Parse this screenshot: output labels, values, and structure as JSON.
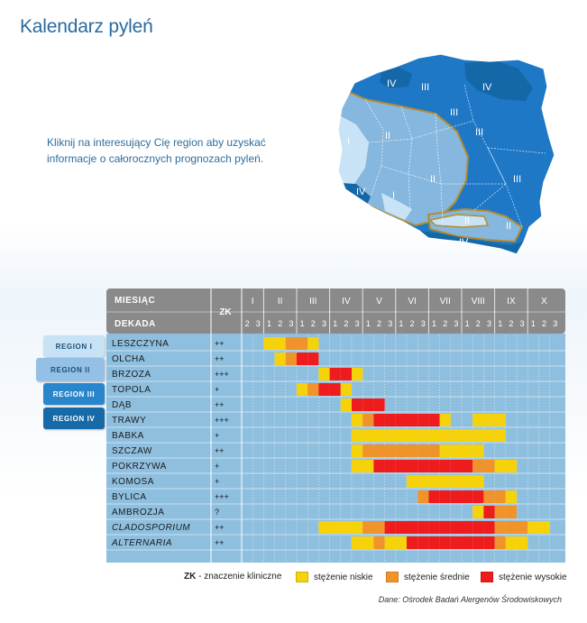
{
  "title": "Kalendarz pyleń",
  "intro": [
    "Kliknij na interesujący Cię region aby uzyskać",
    "informacje o całorocznych prognozach pyleń."
  ],
  "map_labels": [
    "I",
    "I",
    "II",
    "II",
    "II",
    "II",
    "III",
    "III",
    "III",
    "III",
    "IV",
    "IV",
    "IV",
    "IV"
  ],
  "region_buttons": [
    {
      "label": "REGION I",
      "bg": "#c6e2f4",
      "fg": "#1b4f7a"
    },
    {
      "label": "REGION II",
      "bg": "#93c0e4",
      "fg": "#1b4f7a"
    },
    {
      "label": "REGION III",
      "bg": "#2a86cc",
      "fg": "#ffffff"
    },
    {
      "label": "REGION IV",
      "bg": "#176aa8",
      "fg": "#ffffff"
    }
  ],
  "header": {
    "month_label": "MIESIĄC",
    "decade_label": "DEKADA",
    "zk_label": "ZK"
  },
  "colors": {
    "low": "#f5d20a",
    "medium": "#f0932b",
    "high": "#ee1c1c",
    "table_bg": "#8fbfdf",
    "header_bg": "#8a8a8a"
  },
  "chart_data": {
    "type": "table",
    "months": [
      "I",
      "II",
      "III",
      "IV",
      "V",
      "VI",
      "VII",
      "VIII",
      "IX",
      "X"
    ],
    "decades": [
      [
        "2",
        "3"
      ],
      [
        "1",
        "2",
        "3"
      ],
      [
        "1",
        "2",
        "3"
      ],
      [
        "1",
        "2",
        "3"
      ],
      [
        "1",
        "2",
        "3"
      ],
      [
        "1",
        "2",
        "3"
      ],
      [
        "1",
        "2",
        "3"
      ],
      [
        "1",
        "2",
        "3"
      ],
      [
        "1",
        "2",
        "3"
      ],
      [
        "1",
        "2",
        "3"
      ]
    ],
    "level_codes": {
      "0": "brak",
      "1": "stężenie niskie",
      "2": "stężenie średnie",
      "3": "stężenie wysokie"
    },
    "rows": [
      {
        "name": "LESZCZYNA",
        "zk": "++",
        "italic": false,
        "levels": [
          0,
          0,
          1,
          1,
          2,
          2,
          1,
          0,
          0,
          0,
          0,
          0,
          0,
          0,
          0,
          0,
          0,
          0,
          0,
          0,
          0,
          0,
          0,
          0,
          0,
          0,
          0,
          0,
          0
        ]
      },
      {
        "name": "OLCHA",
        "zk": "++",
        "italic": false,
        "levels": [
          0,
          0,
          0,
          1,
          2,
          3,
          3,
          0,
          0,
          0,
          0,
          0,
          0,
          0,
          0,
          0,
          0,
          0,
          0,
          0,
          0,
          0,
          0,
          0,
          0,
          0,
          0,
          0,
          0
        ]
      },
      {
        "name": "BRZOZA",
        "zk": "+++",
        "italic": false,
        "levels": [
          0,
          0,
          0,
          0,
          0,
          0,
          0,
          1,
          3,
          3,
          1,
          0,
          0,
          0,
          0,
          0,
          0,
          0,
          0,
          0,
          0,
          0,
          0,
          0,
          0,
          0,
          0,
          0,
          0
        ]
      },
      {
        "name": "TOPOLA",
        "zk": "+",
        "italic": false,
        "levels": [
          0,
          0,
          0,
          0,
          0,
          1,
          2,
          3,
          3,
          1,
          0,
          0,
          0,
          0,
          0,
          0,
          0,
          0,
          0,
          0,
          0,
          0,
          0,
          0,
          0,
          0,
          0,
          0,
          0
        ]
      },
      {
        "name": "DĄB",
        "zk": "++",
        "italic": false,
        "levels": [
          0,
          0,
          0,
          0,
          0,
          0,
          0,
          0,
          0,
          1,
          3,
          3,
          3,
          0,
          0,
          0,
          0,
          0,
          0,
          0,
          0,
          0,
          0,
          0,
          0,
          0,
          0,
          0,
          0
        ]
      },
      {
        "name": "TRAWY",
        "zk": "+++",
        "italic": false,
        "levels": [
          0,
          0,
          0,
          0,
          0,
          0,
          0,
          0,
          0,
          0,
          1,
          2,
          3,
          3,
          3,
          3,
          3,
          3,
          1,
          0,
          0,
          1,
          1,
          1,
          0,
          0,
          0,
          0,
          0
        ]
      },
      {
        "name": "BABKA",
        "zk": "+",
        "italic": false,
        "levels": [
          0,
          0,
          0,
          0,
          0,
          0,
          0,
          0,
          0,
          0,
          1,
          1,
          1,
          1,
          1,
          1,
          1,
          1,
          1,
          1,
          1,
          1,
          1,
          1,
          0,
          0,
          0,
          0,
          0
        ]
      },
      {
        "name": "SZCZAW",
        "zk": "++",
        "italic": false,
        "levels": [
          0,
          0,
          0,
          0,
          0,
          0,
          0,
          0,
          0,
          0,
          1,
          2,
          2,
          2,
          2,
          2,
          2,
          2,
          1,
          1,
          1,
          1,
          0,
          0,
          0,
          0,
          0,
          0,
          0
        ]
      },
      {
        "name": "POKRZYWA",
        "zk": "+",
        "italic": false,
        "levels": [
          0,
          0,
          0,
          0,
          0,
          0,
          0,
          0,
          0,
          0,
          1,
          1,
          3,
          3,
          3,
          3,
          3,
          3,
          3,
          3,
          3,
          2,
          2,
          1,
          1,
          0,
          0,
          0,
          0
        ]
      },
      {
        "name": "KOMOSA",
        "zk": "+",
        "italic": false,
        "levels": [
          0,
          0,
          0,
          0,
          0,
          0,
          0,
          0,
          0,
          0,
          0,
          0,
          0,
          0,
          0,
          1,
          1,
          1,
          1,
          1,
          1,
          1,
          0,
          0,
          0,
          0,
          0,
          0,
          0
        ]
      },
      {
        "name": "BYLICA",
        "zk": "+++",
        "italic": false,
        "levels": [
          0,
          0,
          0,
          0,
          0,
          0,
          0,
          0,
          0,
          0,
          0,
          0,
          0,
          0,
          0,
          0,
          2,
          3,
          3,
          3,
          3,
          3,
          2,
          2,
          1,
          0,
          0,
          0,
          0
        ]
      },
      {
        "name": "AMBROZJA",
        "zk": "?",
        "italic": false,
        "levels": [
          0,
          0,
          0,
          0,
          0,
          0,
          0,
          0,
          0,
          0,
          0,
          0,
          0,
          0,
          0,
          0,
          0,
          0,
          0,
          0,
          0,
          1,
          3,
          2,
          2,
          0,
          0,
          0,
          0
        ]
      },
      {
        "name": "CLADOSPORIUM",
        "zk": "++",
        "italic": true,
        "levels": [
          0,
          0,
          0,
          0,
          0,
          0,
          0,
          1,
          1,
          1,
          1,
          2,
          2,
          3,
          3,
          3,
          3,
          3,
          3,
          3,
          3,
          3,
          3,
          2,
          2,
          2,
          1,
          1,
          0
        ]
      },
      {
        "name": "ALTERNARIA",
        "zk": "++",
        "italic": true,
        "levels": [
          0,
          0,
          0,
          0,
          0,
          0,
          0,
          0,
          0,
          0,
          1,
          1,
          2,
          1,
          1,
          3,
          3,
          3,
          3,
          3,
          3,
          3,
          3,
          2,
          1,
          1,
          0,
          0,
          0
        ]
      }
    ]
  },
  "legend": {
    "zk_key": "ZK",
    "zk_text": " - znaczenie kliniczne",
    "items": [
      {
        "label": "stężenie niskie",
        "color": "#f5d20a"
      },
      {
        "label": "stężenie średnie",
        "color": "#f0932b"
      },
      {
        "label": "stężenie wysokie",
        "color": "#ee1c1c"
      }
    ]
  },
  "source": "Dane: Ośrodek Badań Alergenów Środowiskowych"
}
